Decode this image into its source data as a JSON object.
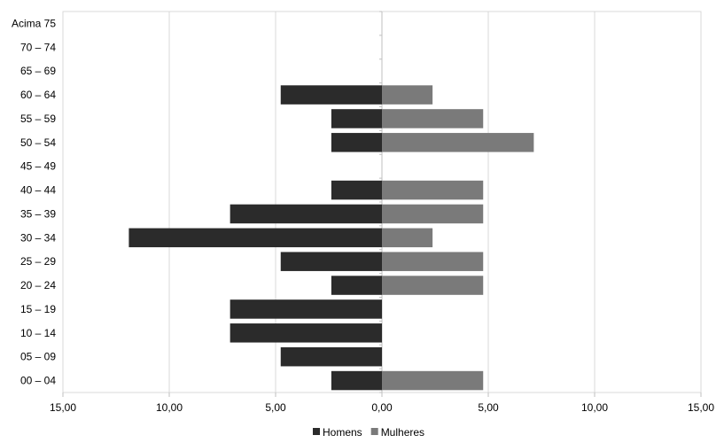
{
  "chart_data": {
    "type": "bar",
    "orientation": "horizontal",
    "title": "",
    "xlabel": "",
    "ylabel": "",
    "categories": [
      "00 – 04",
      "05 – 09",
      "10 – 14",
      "15 – 19",
      "20 – 24",
      "25 – 29",
      "30 – 34",
      "35 – 39",
      "40 – 44",
      "45 – 49",
      "50 – 54",
      "55 – 59",
      "60 – 64",
      "65 – 69",
      "70 – 74",
      "Acima 75"
    ],
    "series": [
      {
        "name": "Homens",
        "values": [
          2.38,
          4.76,
          7.14,
          7.14,
          2.38,
          4.76,
          11.9,
          7.14,
          2.38,
          0,
          2.38,
          2.38,
          4.76,
          0,
          0,
          0
        ],
        "direction": "left",
        "color": "#2b2b2b"
      },
      {
        "name": "Mulheres",
        "values": [
          4.76,
          0,
          0,
          0,
          4.76,
          4.76,
          2.38,
          4.76,
          4.76,
          0,
          7.14,
          4.76,
          2.38,
          0,
          0,
          0
        ],
        "direction": "right",
        "color": "#7a7a7a"
      }
    ],
    "xlim": [
      -15,
      15
    ],
    "x_ticks": [
      -15,
      -10,
      -5,
      0,
      5,
      10,
      15
    ],
    "x_tick_labels": [
      "15,00",
      "10,00",
      "5,00",
      "0,00",
      "5,00",
      "10,00",
      "15,00"
    ],
    "grid": true,
    "legend_position": "bottom-center"
  }
}
